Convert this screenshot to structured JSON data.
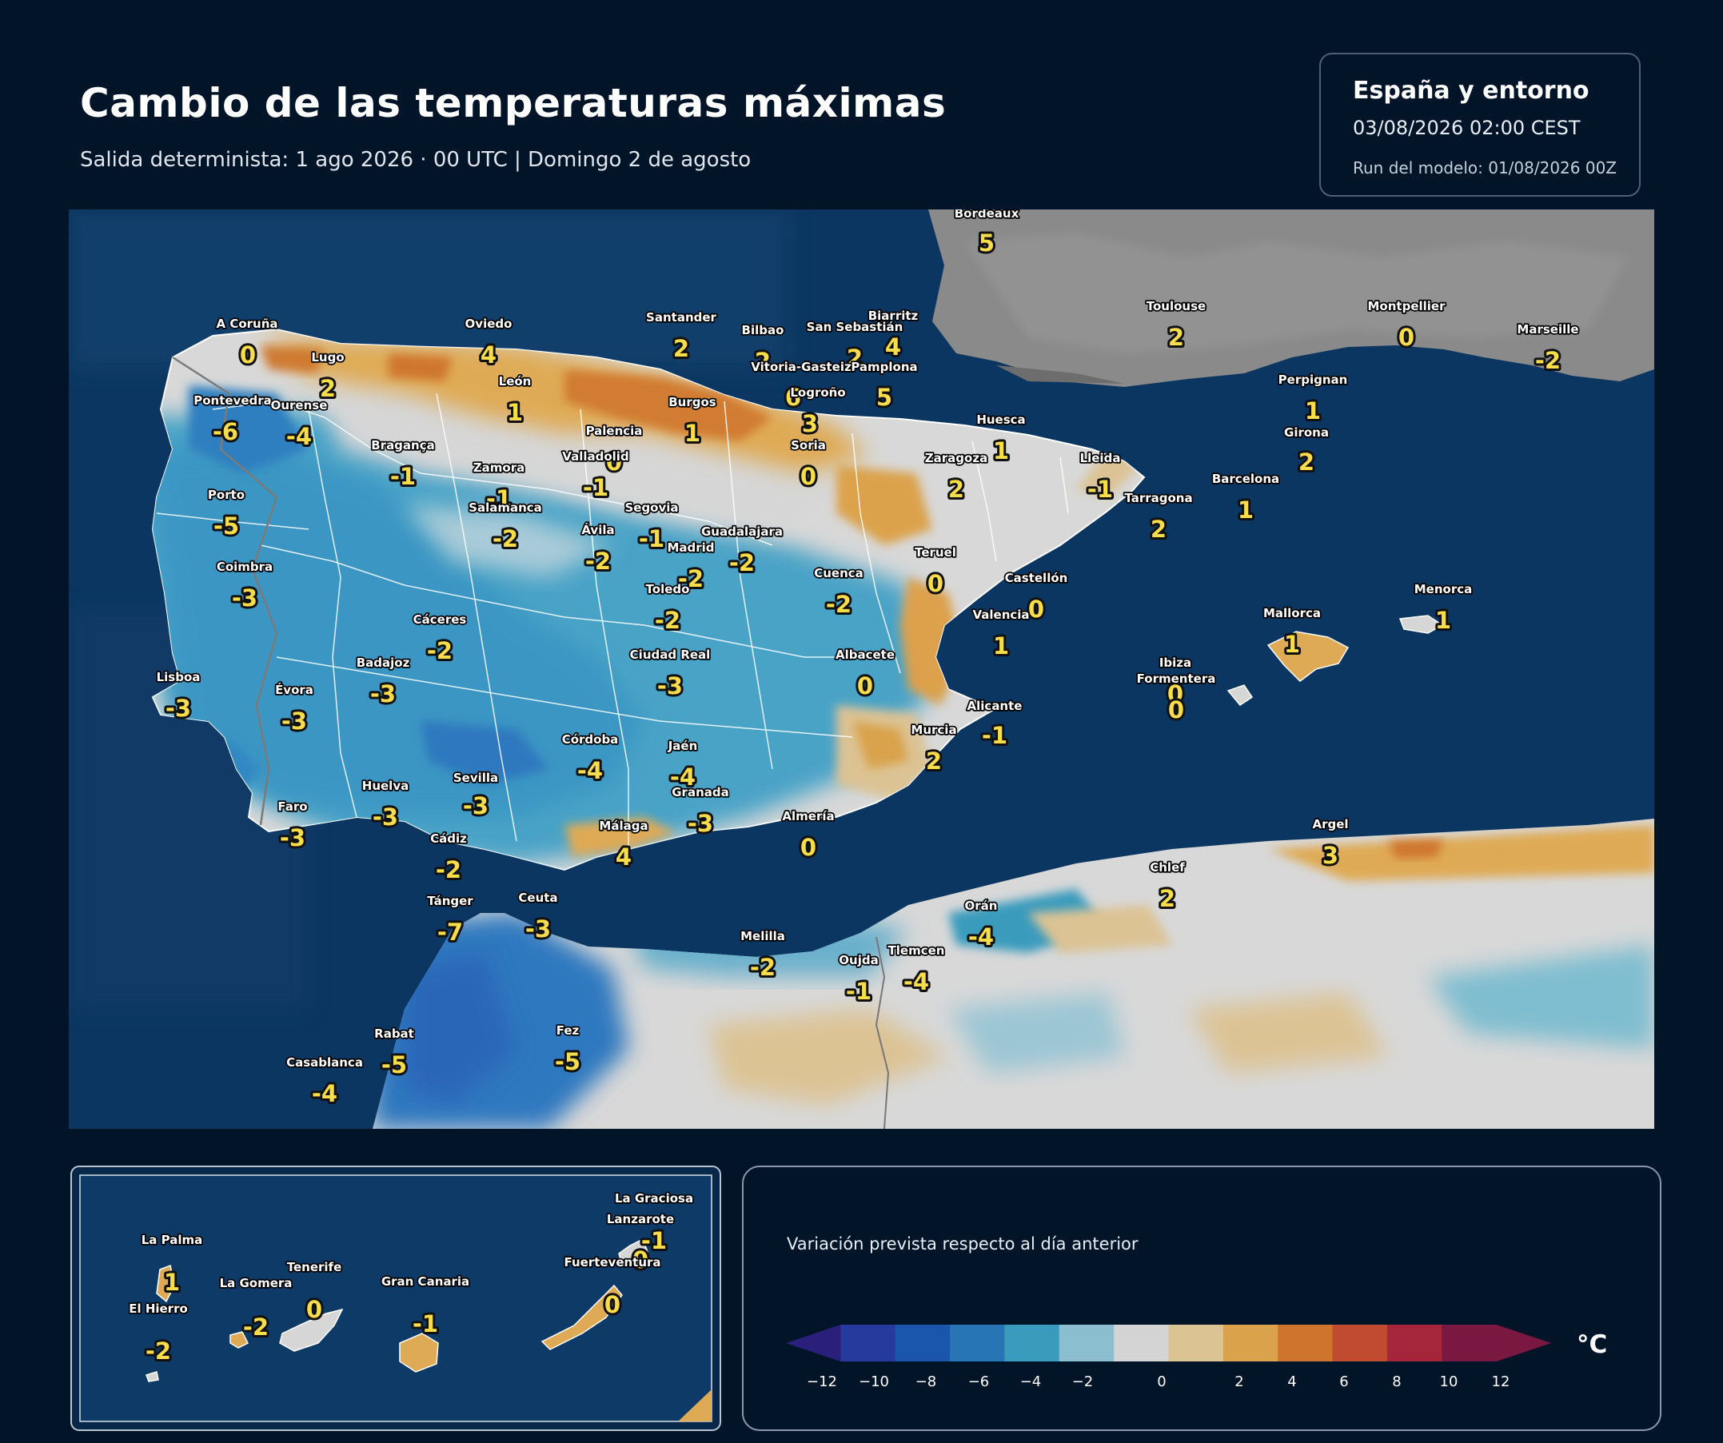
{
  "header": {
    "title": "Cambio de las temperaturas máximas",
    "subtitle": "Salida determinista: 1 ago 2026 · 00 UTC  |  Domingo 2 de agosto"
  },
  "info": {
    "region": "España y entorno",
    "valid_time": "03/08/2026  02:00 CEST",
    "model_run": "Run del modelo: 01/08/2026 00Z"
  },
  "cities": [
    {
      "name": "Bordeaux",
      "value": "5"
    },
    {
      "name": "A Coruña",
      "value": "0"
    },
    {
      "name": "Oviedo",
      "value": "4"
    },
    {
      "name": "Santander",
      "value": "2"
    },
    {
      "name": "Bilbao",
      "value": "2"
    },
    {
      "name": "San Sebastián",
      "value": "2"
    },
    {
      "name": "Biarritz",
      "value": "4"
    },
    {
      "name": "Toulouse",
      "value": "2"
    },
    {
      "name": "Montpellier",
      "value": "0"
    },
    {
      "name": "Marseille",
      "value": "-2"
    },
    {
      "name": "Lugo",
      "value": "2"
    },
    {
      "name": "Vitoria-Gasteiz",
      "value": "6"
    },
    {
      "name": "Pamplona",
      "value": "5"
    },
    {
      "name": "Logroño",
      "value": "3"
    },
    {
      "name": "León",
      "value": "1"
    },
    {
      "name": "Pontevedra",
      "value": "-6"
    },
    {
      "name": "Ourense",
      "value": "-4"
    },
    {
      "name": "Burgos",
      "value": "1"
    },
    {
      "name": "Huesca",
      "value": "1"
    },
    {
      "name": "Perpignan",
      "value": "1"
    },
    {
      "name": "Girona",
      "value": "2"
    },
    {
      "name": "Palencia",
      "value": "0"
    },
    {
      "name": "Bragança",
      "value": "-1"
    },
    {
      "name": "Valladolid",
      "value": "-1"
    },
    {
      "name": "Soria",
      "value": "0"
    },
    {
      "name": "Zaragoza",
      "value": "2"
    },
    {
      "name": "Lleida",
      "value": "-1"
    },
    {
      "name": "Barcelona",
      "value": "1"
    },
    {
      "name": "Zamora",
      "value": "-1"
    },
    {
      "name": "Porto",
      "value": "-5"
    },
    {
      "name": "Salamanca",
      "value": "-2"
    },
    {
      "name": "Segovia",
      "value": "-1"
    },
    {
      "name": "Tarragona",
      "value": "2"
    },
    {
      "name": "Ávila",
      "value": "-2"
    },
    {
      "name": "Guadalajara",
      "value": "-2"
    },
    {
      "name": "Madrid",
      "value": "-2"
    },
    {
      "name": "Coimbra",
      "value": "-3"
    },
    {
      "name": "Teruel",
      "value": "0"
    },
    {
      "name": "Cuenca",
      "value": "-2"
    },
    {
      "name": "Toledo",
      "value": "-2"
    },
    {
      "name": "Castellón",
      "value": "0"
    },
    {
      "name": "Menorca",
      "value": "1"
    },
    {
      "name": "Cáceres",
      "value": "-2"
    },
    {
      "name": "Valencia",
      "value": "1"
    },
    {
      "name": "Mallorca",
      "value": "1"
    },
    {
      "name": "Albacete",
      "value": "0"
    },
    {
      "name": "Ciudad Real",
      "value": "-3"
    },
    {
      "name": "Badajoz",
      "value": "-3"
    },
    {
      "name": "Ibiza",
      "value": "0"
    },
    {
      "name": "Lisboa",
      "value": "-3"
    },
    {
      "name": "Formentera",
      "value": "0"
    },
    {
      "name": "Évora",
      "value": "-3"
    },
    {
      "name": "Alicante",
      "value": "-1"
    },
    {
      "name": "Murcia",
      "value": "2"
    },
    {
      "name": "Córdoba",
      "value": "-4"
    },
    {
      "name": "Jaén",
      "value": "-4"
    },
    {
      "name": "Sevilla",
      "value": "-3"
    },
    {
      "name": "Huelva",
      "value": "-3"
    },
    {
      "name": "Granada",
      "value": "-3"
    },
    {
      "name": "Faro",
      "value": "-3"
    },
    {
      "name": "Almería",
      "value": "0"
    },
    {
      "name": "Argel",
      "value": "3"
    },
    {
      "name": "Málaga",
      "value": "4"
    },
    {
      "name": "Cádiz",
      "value": "-2"
    },
    {
      "name": "Chlef",
      "value": "2"
    },
    {
      "name": "Orán",
      "value": "-4"
    },
    {
      "name": "Tánger",
      "value": "-7"
    },
    {
      "name": "Ceuta",
      "value": "-3"
    },
    {
      "name": "Melilla",
      "value": "-2"
    },
    {
      "name": "Tlemcen",
      "value": "-4"
    },
    {
      "name": "Oujda",
      "value": "-1"
    },
    {
      "name": "Rabat",
      "value": "-5"
    },
    {
      "name": "Fez",
      "value": "-5"
    },
    {
      "name": "Casablanca",
      "value": "-4"
    }
  ],
  "canary": [
    {
      "name": "La Graciosa",
      "value": "-1"
    },
    {
      "name": "Lanzarote",
      "value": "0"
    },
    {
      "name": "La Palma",
      "value": "1"
    },
    {
      "name": "Fuerteventura",
      "value": "0"
    },
    {
      "name": "Tenerife",
      "value": "0"
    },
    {
      "name": "Gran Canaria",
      "value": "-1"
    },
    {
      "name": "La Gomera",
      "value": "-2"
    },
    {
      "name": "El Hierro",
      "value": "-2"
    }
  ],
  "legend": {
    "caption": "Variación prevista respecto al día anterior",
    "unit": "°C",
    "ticks": [
      "−12",
      "−10",
      "−8",
      "−6",
      "−4",
      "−2",
      "0",
      "2",
      "4",
      "6",
      "8",
      "10",
      "12"
    ],
    "colors": [
      "#2a1f7a",
      "#263a9e",
      "#1b56ad",
      "#2875b5",
      "#3b9bbd",
      "#8bbfcf",
      "#d4d4d4",
      "#dcc394",
      "#d9a24b",
      "#cf742d",
      "#c04b30",
      "#a5263a",
      "#7a1842"
    ]
  }
}
